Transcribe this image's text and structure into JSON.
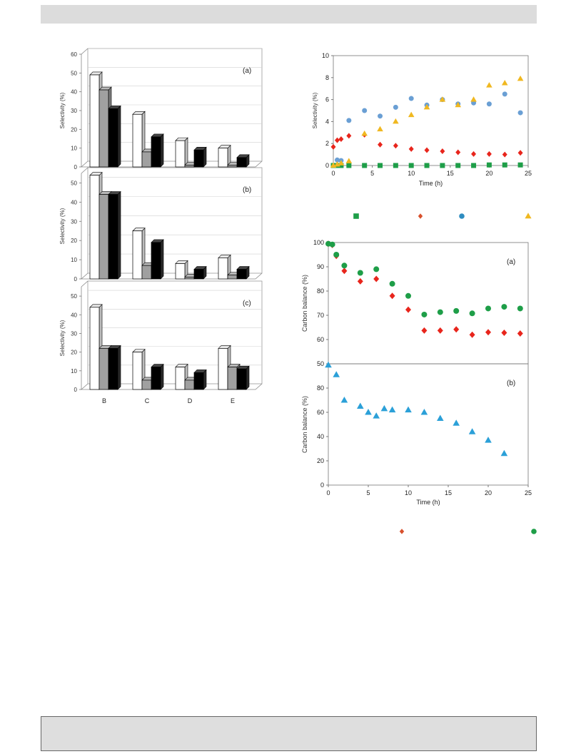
{
  "chart_data": [
    {
      "id": "selectivity-bars",
      "type": "bar",
      "categories": [
        "B",
        "C",
        "D",
        "E"
      ],
      "panels": [
        {
          "label": "(a)",
          "ylim": [
            0,
            60
          ],
          "yticks": [
            "0",
            "10",
            "20",
            "30",
            "40",
            "50",
            "60"
          ],
          "series": [
            {
              "color": "#ffffff",
              "values": [
                49,
                28,
                14,
                10
              ]
            },
            {
              "color": "#a0a0a0",
              "values": [
                41,
                8,
                1,
                1
              ]
            },
            {
              "color": "#000000",
              "values": [
                31,
                16,
                9,
                5
              ]
            }
          ]
        },
        {
          "label": "(b)",
          "ylim": [
            0,
            55
          ],
          "yticks": [
            "0",
            "10",
            "20",
            "30",
            "40",
            "50"
          ],
          "series": [
            {
              "color": "#ffffff",
              "values": [
                54,
                25,
                8,
                11
              ]
            },
            {
              "color": "#a0a0a0",
              "values": [
                44,
                7,
                1,
                2
              ]
            },
            {
              "color": "#000000",
              "values": [
                44,
                19,
                5,
                5
              ]
            }
          ]
        },
        {
          "label": "(c)",
          "ylim": [
            0,
            55
          ],
          "yticks": [
            "0",
            "10",
            "20",
            "30",
            "40",
            "50"
          ],
          "series": [
            {
              "color": "#ffffff",
              "values": [
                44,
                20,
                12,
                22
              ]
            },
            {
              "color": "#a0a0a0",
              "values": [
                22,
                5,
                5,
                12
              ]
            },
            {
              "color": "#000000",
              "values": [
                22,
                12,
                9,
                11
              ]
            }
          ]
        }
      ],
      "ylabel": "Selectivity (%)"
    },
    {
      "id": "selectivity-time",
      "type": "scatter",
      "xlabel": "Time (h)",
      "ylabel": "Selectivity (%)",
      "xlim": [
        0,
        25
      ],
      "ylim": [
        0,
        10
      ],
      "xticks": [
        "0",
        "5",
        "10",
        "15",
        "20",
        "25"
      ],
      "yticks": [
        "0",
        "2",
        "4",
        "6",
        "8",
        "10"
      ],
      "series": [
        {
          "marker": "square",
          "color": "#1e9e48",
          "x": [
            0,
            0.5,
            1,
            2,
            4,
            6,
            8,
            10,
            12,
            14,
            16,
            18,
            20,
            22,
            24
          ],
          "y": [
            0,
            0,
            0,
            0,
            0,
            0,
            0,
            0,
            0,
            0,
            0,
            0,
            0.05,
            0.05,
            0.05
          ]
        },
        {
          "marker": "diamond",
          "color": "#e8251c",
          "x": [
            0,
            0.5,
            1,
            2,
            4,
            6,
            8,
            10,
            12,
            14,
            16,
            18,
            20,
            22,
            24
          ],
          "y": [
            1.7,
            2.3,
            2.4,
            2.7,
            2.8,
            1.9,
            1.8,
            1.5,
            1.4,
            1.3,
            1.2,
            1.05,
            1.05,
            1.0,
            1.15
          ]
        },
        {
          "marker": "circle",
          "color": "#6a9fd4",
          "x": [
            0.5,
            1,
            2,
            4,
            6,
            8,
            10,
            12,
            14,
            16,
            18,
            20,
            22,
            24
          ],
          "y": [
            0.5,
            0.45,
            4.1,
            5.0,
            4.5,
            5.3,
            6.1,
            5.5,
            6.0,
            5.6,
            5.7,
            5.6,
            6.5,
            4.8
          ]
        },
        {
          "marker": "triangle",
          "color": "#f0b820",
          "x": [
            0,
            0.5,
            1,
            2,
            4,
            6,
            8,
            10,
            12,
            14,
            16,
            18,
            20,
            22,
            24
          ],
          "y": [
            0,
            0.1,
            0.2,
            0.4,
            2.9,
            3.3,
            4.0,
            4.6,
            5.3,
            6.0,
            5.5,
            6.0,
            7.3,
            7.5,
            7.9
          ]
        }
      ],
      "legend_markers": [
        "square",
        "diamond",
        "circle",
        "triangle"
      ]
    },
    {
      "id": "carbon-balance",
      "type": "scatter",
      "xlabel": "Time (h)",
      "ylabel": "Carbon balance (%)",
      "xlim": [
        0,
        25
      ],
      "xticks": [
        "0",
        "5",
        "10",
        "15",
        "20",
        "25"
      ],
      "panels": [
        {
          "label": "(a)",
          "ylim": [
            50,
            100
          ],
          "yticks": [
            "50",
            "60",
            "70",
            "80",
            "90",
            "100"
          ],
          "series": [
            {
              "marker": "diamond",
              "color": "#e8251c",
              "x": [
                0,
                0.5,
                1,
                2,
                4,
                6,
                8,
                10,
                12,
                14,
                16,
                18,
                20,
                22,
                24
              ],
              "y": [
                99.5,
                99,
                94.5,
                88.3,
                84,
                85,
                78,
                72.3,
                63.7,
                63.7,
                64.2,
                62,
                63,
                62.8,
                62.5
              ]
            },
            {
              "marker": "circle",
              "color": "#1e9e48",
              "x": [
                0,
                0.5,
                1,
                2,
                4,
                6,
                8,
                10,
                12,
                14,
                16,
                18,
                20,
                22,
                24
              ],
              "y": [
                99.5,
                99.2,
                95,
                90.5,
                87.5,
                89,
                83,
                78,
                70.3,
                71.3,
                71.8,
                70.8,
                72.8,
                73.5,
                72.8
              ]
            }
          ]
        },
        {
          "label": "(b)",
          "ylim": [
            0,
            100
          ],
          "yticks": [
            "0",
            "20",
            "40",
            "60",
            "80"
          ],
          "series": [
            {
              "marker": "triangle",
              "color": "#2ba0d8",
              "x": [
                0,
                1,
                2,
                4,
                5,
                6,
                7,
                8,
                10,
                12,
                14,
                16,
                18,
                20,
                22
              ],
              "y": [
                99,
                91,
                70,
                65,
                60,
                57,
                63,
                62,
                62,
                60,
                55,
                51,
                44,
                37,
                26
              ]
            }
          ]
        }
      ],
      "legend_markers": [
        "diamond",
        "circle"
      ]
    }
  ]
}
